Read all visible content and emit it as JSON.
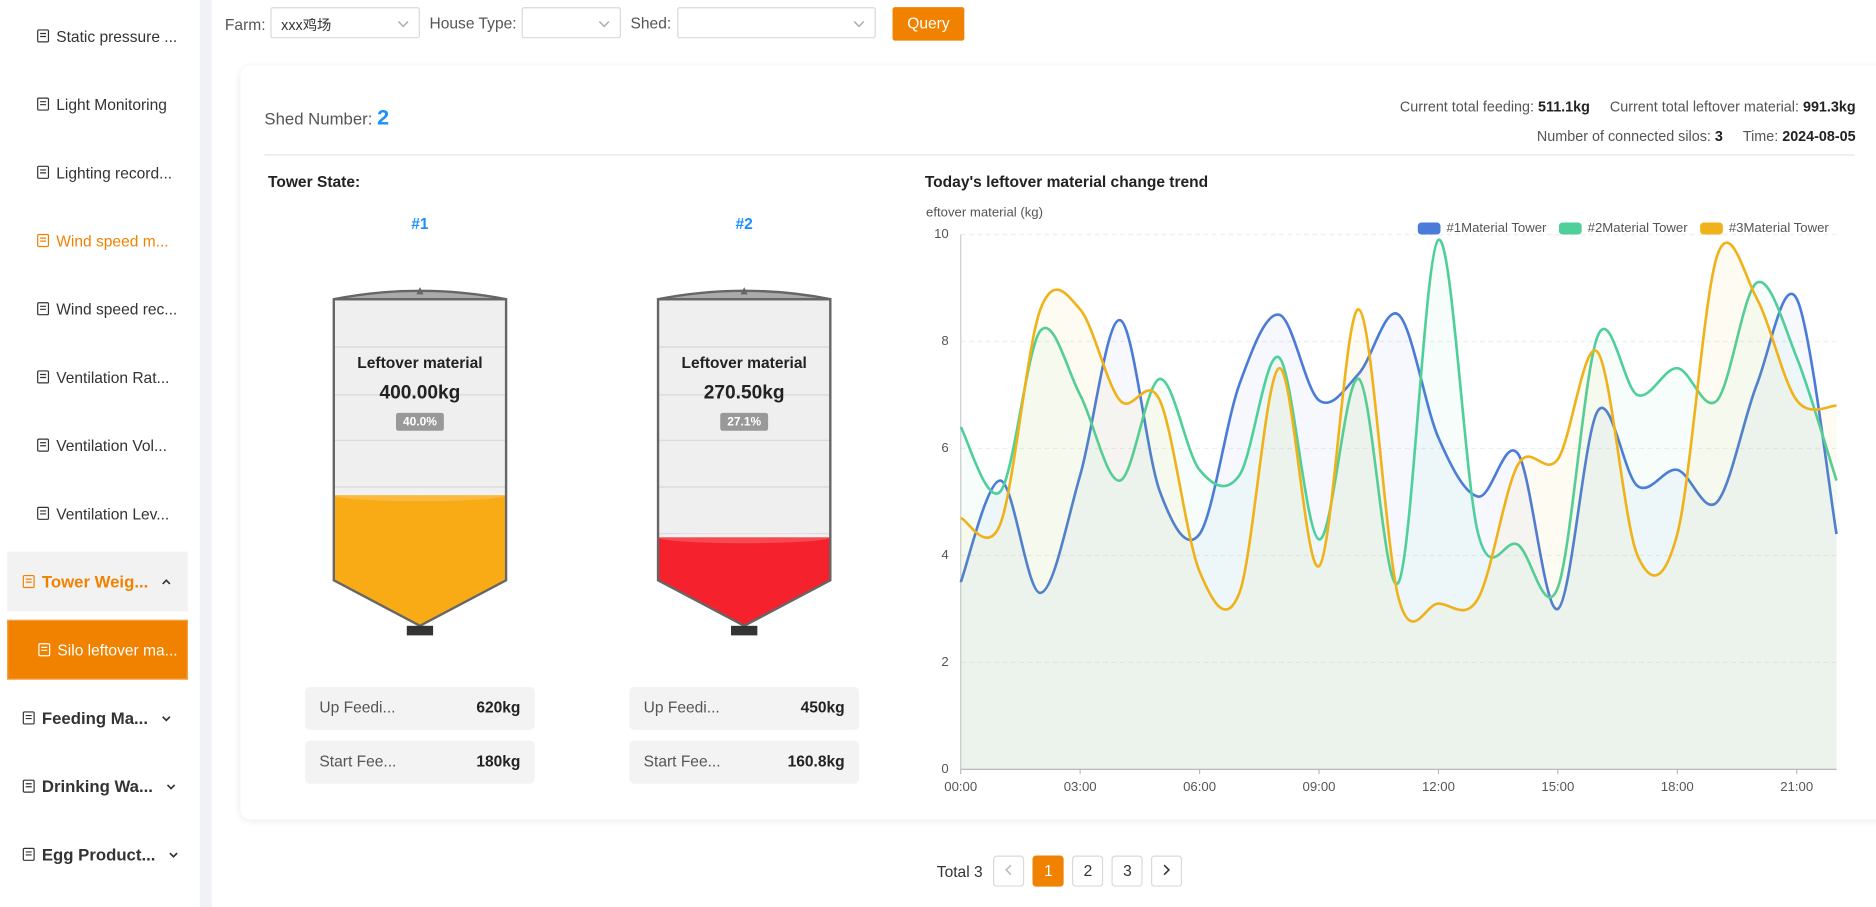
{
  "sidebar": [
    "Static pressure ...",
    "Light Monitoring",
    "Lighting record...",
    "Wind speed m...",
    "Wind speed rec...",
    "Ventilation Rat...",
    "Ventilation Vol...",
    "Ventilation Lev...",
    "Tower Weig...",
    "Silo leftover ma...",
    "Feeding Ma...",
    "Drinking Wa...",
    "Egg Product..."
  ],
  "filters": {
    "farm_label": "Farm:",
    "farm_value": "xxx鸡场",
    "house_label": "House Type:",
    "shed_label": "Shed:",
    "query": "Query"
  },
  "summary": {
    "shed_label": "Shed Number:",
    "shed_value": "2",
    "feeding_label": "Current total feeding:",
    "feeding_value": "511.1kg",
    "leftover_label": "Current total leftover material:",
    "leftover_value": "991.3kg",
    "silos_label": "Number of connected silos:",
    "silos_value": "3",
    "time_label": "Time:",
    "time_value": "2024-08-05"
  },
  "tower_section": "Tower State:",
  "towers": [
    {
      "name": "#1",
      "label": "Leftover material",
      "amount": "400.00kg",
      "level": 40.0,
      "level_label": "40.0%",
      "color": "#f9ab16",
      "up_label": "Up Feedi...",
      "up_value": "620kg",
      "start_label": "Start Fee...",
      "start_value": "180kg"
    },
    {
      "name": "#2",
      "label": "Leftover material",
      "amount": "270.50kg",
      "level": 27.1,
      "level_label": "27.1%",
      "color": "#f5222d",
      "up_label": "Up Feedi...",
      "up_value": "450kg",
      "start_label": "Start Fee...",
      "start_value": "160.8kg"
    }
  ],
  "chart_data": {
    "type": "line",
    "title": "Today's leftover material change trend",
    "y_label": "eftover material (kg)",
    "x": [
      0,
      1,
      2,
      3,
      4,
      5,
      6,
      7,
      8,
      9,
      10,
      11,
      12,
      13,
      14,
      15,
      16,
      17,
      18,
      19,
      20,
      21,
      22
    ],
    "xlim": [
      0,
      22
    ],
    "xticks": [
      {
        "value": 0,
        "label": "00:00"
      },
      {
        "value": 3,
        "label": "03:00"
      },
      {
        "value": 6,
        "label": "06:00"
      },
      {
        "value": 9,
        "label": "09:00"
      },
      {
        "value": 12,
        "label": "12:00"
      },
      {
        "value": 15,
        "label": "15:00"
      },
      {
        "value": 18,
        "label": "18:00"
      },
      {
        "value": 21,
        "label": "21:00"
      }
    ],
    "ylim": [
      0,
      10
    ],
    "yticks": [
      0,
      2,
      4,
      6,
      8,
      10
    ],
    "grid": true,
    "series": [
      {
        "name": "#1Material Tower",
        "color": "#4a7bd8",
        "values": [
          3.5,
          5.4,
          3.3,
          5.5,
          8.4,
          5.2,
          4.4,
          7.2,
          8.5,
          6.9,
          7.4,
          8.5,
          6.2,
          5.1,
          5.9,
          3.0,
          6.7,
          5.3,
          5.6,
          5.0,
          7.2,
          8.8,
          4.4
        ]
      },
      {
        "name": "#2Material Tower",
        "color": "#4fcf9a",
        "values": [
          6.4,
          5.2,
          8.2,
          7.0,
          5.4,
          7.3,
          5.6,
          5.5,
          7.7,
          4.3,
          7.3,
          3.5,
          9.9,
          4.4,
          4.2,
          3.4,
          8.1,
          7.0,
          7.5,
          6.9,
          9.1,
          7.7,
          5.4
        ]
      },
      {
        "name": "#3Material Tower",
        "color": "#f0b21a",
        "values": [
          4.7,
          4.6,
          8.6,
          8.6,
          6.9,
          6.9,
          3.7,
          3.3,
          7.5,
          3.8,
          8.6,
          3.2,
          3.1,
          3.2,
          5.7,
          5.8,
          7.8,
          4.0,
          4.4,
          9.6,
          8.8,
          6.9,
          6.8
        ]
      }
    ]
  },
  "pagination": {
    "total": "Total 3",
    "pages": [
      "1",
      "2",
      "3"
    ]
  }
}
